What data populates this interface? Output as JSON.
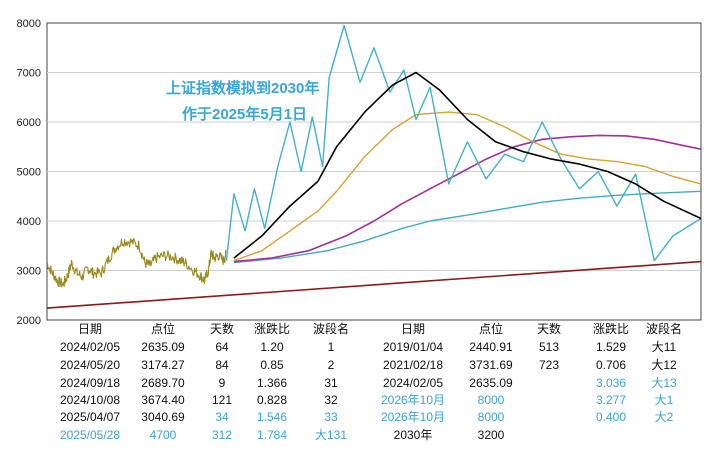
{
  "chart_data": {
    "type": "line",
    "title": "上证指数模拟到2030年",
    "subtitle": "作于2025年5月1日",
    "ylim": [
      2000,
      8000
    ],
    "yticks": [
      2000,
      3000,
      4000,
      5000,
      6000,
      7000,
      8000
    ],
    "grid": "horizontal",
    "colors": {
      "price": "#9a8a1e",
      "projection": "#3fb2c9",
      "ma_black": "#000000",
      "ma_gold": "#d7a233",
      "ma_purple": "#a2309a",
      "ma_teal": "#45a9c6",
      "trend": "#8b1a1a"
    },
    "x_end_2030": 2030,
    "projection_path": [
      [
        2024.92,
        3200
      ],
      [
        2025.0,
        4550
      ],
      [
        2025.12,
        3800
      ],
      [
        2025.22,
        4650
      ],
      [
        2025.33,
        3850
      ],
      [
        2025.47,
        5100
      ],
      [
        2025.6,
        6000
      ],
      [
        2025.72,
        5000
      ],
      [
        2025.84,
        6100
      ],
      [
        2025.95,
        5100
      ],
      [
        2026.02,
        6900
      ],
      [
        2026.18,
        7950
      ],
      [
        2026.35,
        6800
      ],
      [
        2026.5,
        7500
      ],
      [
        2026.67,
        6600
      ],
      [
        2026.82,
        7050
      ],
      [
        2026.95,
        6050
      ],
      [
        2027.1,
        6700
      ],
      [
        2027.3,
        4750
      ],
      [
        2027.5,
        5600
      ],
      [
        2027.7,
        4850
      ],
      [
        2027.9,
        5350
      ],
      [
        2028.1,
        5200
      ],
      [
        2028.3,
        6000
      ],
      [
        2028.5,
        5250
      ],
      [
        2028.7,
        4650
      ],
      [
        2028.9,
        5000
      ],
      [
        2029.1,
        4300
      ],
      [
        2029.3,
        4950
      ],
      [
        2029.5,
        3200
      ],
      [
        2029.7,
        3700
      ],
      [
        2030.0,
        4050
      ]
    ],
    "ma_black": [
      [
        2025.0,
        3250
      ],
      [
        2025.3,
        3700
      ],
      [
        2025.6,
        4300
      ],
      [
        2025.9,
        4800
      ],
      [
        2026.1,
        5500
      ],
      [
        2026.4,
        6200
      ],
      [
        2026.7,
        6750
      ],
      [
        2026.95,
        7000
      ],
      [
        2027.2,
        6650
      ],
      [
        2027.5,
        6050
      ],
      [
        2027.8,
        5600
      ],
      [
        2028.1,
        5400
      ],
      [
        2028.4,
        5250
      ],
      [
        2028.7,
        5150
      ],
      [
        2029.0,
        5000
      ],
      [
        2029.3,
        4750
      ],
      [
        2029.6,
        4400
      ],
      [
        2030.0,
        4050
      ]
    ],
    "ma_gold": [
      [
        2025.0,
        3200
      ],
      [
        2025.3,
        3400
      ],
      [
        2025.6,
        3800
      ],
      [
        2025.9,
        4200
      ],
      [
        2026.1,
        4600
      ],
      [
        2026.4,
        5300
      ],
      [
        2026.7,
        5850
      ],
      [
        2026.95,
        6150
      ],
      [
        2027.3,
        6200
      ],
      [
        2027.6,
        6150
      ],
      [
        2027.9,
        5900
      ],
      [
        2028.2,
        5600
      ],
      [
        2028.5,
        5350
      ],
      [
        2028.8,
        5250
      ],
      [
        2029.1,
        5200
      ],
      [
        2029.4,
        5100
      ],
      [
        2029.7,
        4900
      ],
      [
        2030.0,
        4750
      ]
    ],
    "ma_purple": [
      [
        2025.0,
        3180
      ],
      [
        2025.4,
        3250
      ],
      [
        2025.8,
        3400
      ],
      [
        2026.2,
        3700
      ],
      [
        2026.5,
        4000
      ],
      [
        2026.8,
        4350
      ],
      [
        2027.1,
        4650
      ],
      [
        2027.4,
        4950
      ],
      [
        2027.7,
        5250
      ],
      [
        2028.0,
        5500
      ],
      [
        2028.3,
        5650
      ],
      [
        2028.6,
        5700
      ],
      [
        2028.9,
        5730
      ],
      [
        2029.2,
        5720
      ],
      [
        2029.5,
        5650
      ],
      [
        2029.8,
        5530
      ],
      [
        2030.0,
        5450
      ]
    ],
    "ma_teal": [
      [
        2025.0,
        3160
      ],
      [
        2025.5,
        3250
      ],
      [
        2026.0,
        3400
      ],
      [
        2026.4,
        3600
      ],
      [
        2026.8,
        3850
      ],
      [
        2027.1,
        4000
      ],
      [
        2027.5,
        4120
      ],
      [
        2027.9,
        4250
      ],
      [
        2028.3,
        4380
      ],
      [
        2028.7,
        4460
      ],
      [
        2029.1,
        4520
      ],
      [
        2029.5,
        4560
      ],
      [
        2030.0,
        4600
      ]
    ],
    "trend_line": [
      [
        2023.0,
        2240
      ],
      [
        2030.0,
        3180
      ]
    ],
    "table_left": {
      "headers": [
        "日期",
        "点位",
        "天数",
        "涨跌比",
        "波段名"
      ],
      "rows": [
        {
          "cells": [
            "2024/02/05",
            "2635.09",
            "64",
            "1.20",
            "1"
          ],
          "hl": [
            false,
            false,
            false,
            false,
            false
          ]
        },
        {
          "cells": [
            "2024/05/20",
            "3174.27",
            "84",
            "0.85",
            "2"
          ],
          "hl": [
            false,
            false,
            false,
            false,
            false
          ]
        },
        {
          "cells": [
            "2024/09/18",
            "2689.70",
            "9",
            "1.366",
            "31"
          ],
          "hl": [
            false,
            false,
            false,
            false,
            false
          ]
        },
        {
          "cells": [
            "2024/10/08",
            "3674.40",
            "121",
            "0.828",
            "32"
          ],
          "hl": [
            false,
            false,
            false,
            false,
            false
          ]
        },
        {
          "cells": [
            "2025/04/07",
            "3040.69",
            "34",
            "1.546",
            "33"
          ],
          "hl": [
            false,
            false,
            true,
            true,
            true
          ]
        },
        {
          "cells": [
            "2025/05/28",
            "4700",
            "312",
            "1.784",
            "大131"
          ],
          "hl": [
            true,
            true,
            true,
            true,
            true
          ]
        }
      ]
    },
    "table_right": {
      "headers": [
        "日期",
        "点位",
        "天数",
        "涨跌比",
        "波段名"
      ],
      "rows": [
        {
          "cells": [
            "2019/01/04",
            "2440.91",
            "513",
            "1.529",
            "大11"
          ],
          "hl": [
            false,
            false,
            false,
            false,
            false
          ]
        },
        {
          "cells": [
            "2021/02/18",
            "3731.69",
            "723",
            "0.706",
            "大12"
          ],
          "hl": [
            false,
            false,
            false,
            false,
            false
          ]
        },
        {
          "cells": [
            "2024/02/05",
            "2635.09",
            "",
            "3.036",
            "大13"
          ],
          "hl": [
            false,
            false,
            false,
            true,
            true
          ]
        },
        {
          "cells": [
            "2026年10月",
            "8000",
            "",
            "3.277",
            "大1"
          ],
          "hl": [
            true,
            true,
            false,
            true,
            true
          ]
        },
        {
          "cells": [
            "2026年10月",
            "8000",
            "",
            "0.400",
            "大2"
          ],
          "hl": [
            true,
            true,
            false,
            true,
            true
          ]
        },
        {
          "cells": [
            "2030年",
            "3200",
            "",
            "",
            ""
          ],
          "hl": [
            false,
            false,
            false,
            false,
            false
          ]
        }
      ]
    }
  }
}
